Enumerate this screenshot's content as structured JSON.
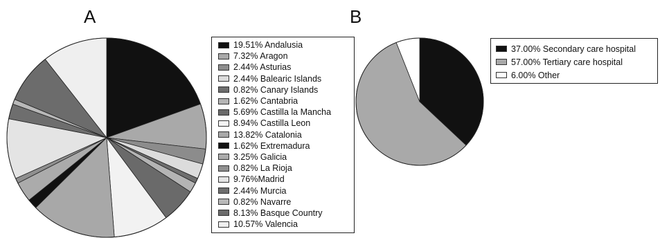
{
  "chart_data": [
    {
      "type": "pie",
      "panel_label": "A",
      "title": "",
      "legend_position": "right",
      "slices": [
        {
          "legend": "19.51% Andalusia",
          "value": 19.51,
          "color": "#111111"
        },
        {
          "legend": "7.32% Aragon",
          "value": 7.32,
          "color": "#a9a9a9"
        },
        {
          "legend": "2.44% Asturias",
          "value": 2.44,
          "color": "#8c8c8c"
        },
        {
          "legend": "2.44% Balearic Islands",
          "value": 2.44,
          "color": "#dcdcdc"
        },
        {
          "legend": "0.82% Canary Islands",
          "value": 0.82,
          "color": "#6e6e6e"
        },
        {
          "legend": "1.62% Cantabria",
          "value": 1.62,
          "color": "#b4b4b4"
        },
        {
          "legend": "5.69% Castilla la Mancha",
          "value": 5.69,
          "color": "#6a6a6a"
        },
        {
          "legend": "8.94% Castilla Leon",
          "value": 8.94,
          "color": "#f2f2f2"
        },
        {
          "legend": "13.82% Catalonia",
          "value": 13.82,
          "color": "#a8a8a8"
        },
        {
          "legend": "1.62% Extremadura",
          "value": 1.62,
          "color": "#111111"
        },
        {
          "legend": "3.25% Galicia",
          "value": 3.25,
          "color": "#ababab"
        },
        {
          "legend": "0.82% La Rioja",
          "value": 0.82,
          "color": "#8f8f8f"
        },
        {
          "legend": "9.76%Madrid",
          "value": 9.76,
          "color": "#e4e4e4"
        },
        {
          "legend": "2.44% Murcia",
          "value": 2.44,
          "color": "#6e6e6e"
        },
        {
          "legend": "0.82% Navarre",
          "value": 0.82,
          "color": "#b8b8b8"
        },
        {
          "legend": "8.13% Basque Country",
          "value": 8.13,
          "color": "#6c6c6c"
        },
        {
          "legend": "10.57% Valencia",
          "value": 10.57,
          "color": "#efefef"
        }
      ]
    },
    {
      "type": "pie",
      "panel_label": "B",
      "title": "",
      "legend_position": "right",
      "slices": [
        {
          "legend": "37.00% Secondary care hospital",
          "value": 37.0,
          "color": "#111111"
        },
        {
          "legend": "57.00% Tertiary care hospital",
          "value": 57.0,
          "color": "#a9a9a9"
        },
        {
          "legend": "6.00% Other",
          "value": 6.0,
          "color": "#ffffff"
        }
      ]
    }
  ]
}
